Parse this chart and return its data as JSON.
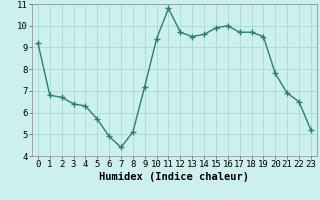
{
  "x": [
    0,
    1,
    2,
    3,
    4,
    5,
    6,
    7,
    8,
    9,
    10,
    11,
    12,
    13,
    14,
    15,
    16,
    17,
    18,
    19,
    20,
    21,
    22,
    23
  ],
  "y": [
    9.2,
    6.8,
    6.7,
    6.4,
    6.3,
    5.7,
    4.9,
    4.4,
    5.1,
    7.2,
    9.4,
    10.8,
    9.7,
    9.5,
    9.6,
    9.9,
    10.0,
    9.7,
    9.7,
    9.5,
    7.8,
    6.9,
    6.5,
    5.2
  ],
  "line_color": "#2E7D6E",
  "marker": "+",
  "markersize": 4,
  "linewidth": 1.0,
  "markeredgewidth": 1.0,
  "bg_color": "#CBF0EE",
  "grid_color": "#AADAD7",
  "xlabel": "Humidex (Indice chaleur)",
  "xlim": [
    -0.5,
    23.5
  ],
  "ylim": [
    4,
    11
  ],
  "yticks": [
    4,
    5,
    6,
    7,
    8,
    9,
    10,
    11
  ],
  "xticks": [
    0,
    1,
    2,
    3,
    4,
    5,
    6,
    7,
    8,
    9,
    10,
    11,
    12,
    13,
    14,
    15,
    16,
    17,
    18,
    19,
    20,
    21,
    22,
    23
  ],
  "xlabel_fontsize": 7.5,
  "tick_fontsize": 6.5
}
